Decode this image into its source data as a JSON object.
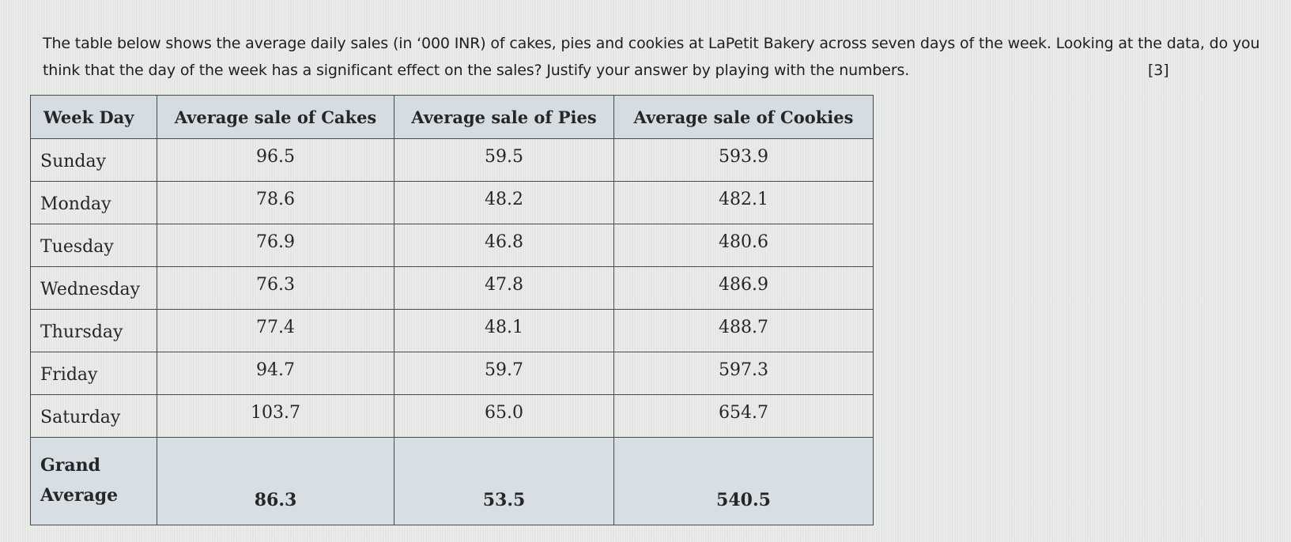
{
  "question": {
    "text": "The table below shows the average daily sales (in ‘000 INR) of cakes, pies and cookies at LaPetit Bakery across seven days of the week. Looking at the data, do you think that the day of the week has a significant effect on the sales? Justify your answer by playing with the numbers.",
    "marks": "[3]"
  },
  "table": {
    "headers": [
      "Week Day",
      "Average sale of Cakes",
      "Average sale of Pies",
      "Average  sale of Cookies"
    ],
    "rows": [
      {
        "day": "Sunday",
        "cakes": "96.5",
        "pies": "59.5",
        "cookies": "593.9"
      },
      {
        "day": "Monday",
        "cakes": "78.6",
        "pies": "48.2",
        "cookies": "482.1"
      },
      {
        "day": "Tuesday",
        "cakes": "76.9",
        "pies": "46.8",
        "cookies": "480.6"
      },
      {
        "day": "Wednesday",
        "cakes": "76.3",
        "pies": "47.8",
        "cookies": "486.9"
      },
      {
        "day": "Thursday",
        "cakes": "77.4",
        "pies": "48.1",
        "cookies": "488.7"
      },
      {
        "day": "Friday",
        "cakes": "94.7",
        "pies": "59.7",
        "cookies": "597.3"
      },
      {
        "day": "Saturday",
        "cakes": "103.7",
        "pies": "65.0",
        "cookies": "654.7"
      }
    ],
    "grand": {
      "label_line1": "Grand",
      "label_line2": "Average",
      "cakes": "86.3",
      "pies": "53.5",
      "cookies": "540.5"
    }
  }
}
